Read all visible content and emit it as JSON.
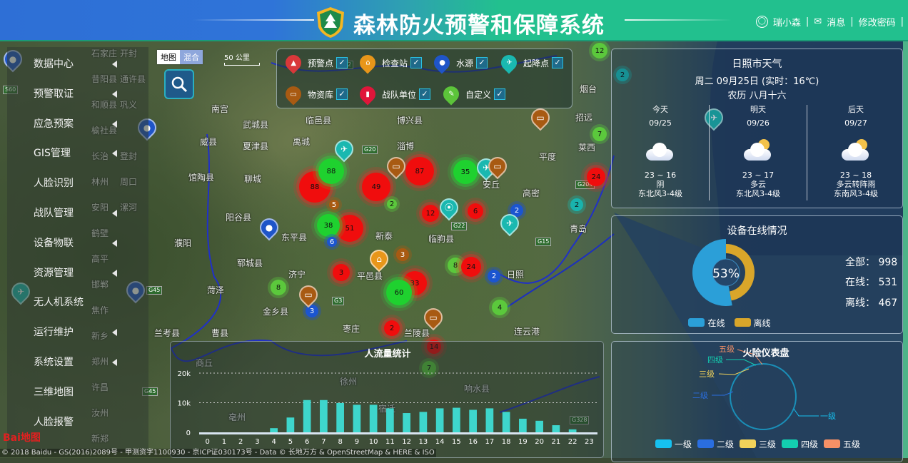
{
  "header": {
    "title": "森林防火预警和保障系统",
    "user": "瑞小森",
    "messages": "消息",
    "change_password": "修改密码",
    "colors": {
      "left": "#2e6fd6",
      "right": "#22c08e"
    }
  },
  "menu": {
    "items": [
      {
        "label": "数据中心",
        "submenu": true
      },
      {
        "label": "预警取证",
        "submenu": true
      },
      {
        "label": "应急预案",
        "submenu": true
      },
      {
        "label": "GIS管理",
        "submenu": true
      },
      {
        "label": "人脸识别",
        "submenu": false
      },
      {
        "label": "战队管理",
        "submenu": true
      },
      {
        "label": "设备物联",
        "submenu": true
      },
      {
        "label": "资源管理",
        "submenu": true
      },
      {
        "label": "无人机系统",
        "submenu": false
      },
      {
        "label": "运行维护",
        "submenu": true
      },
      {
        "label": "系统设置",
        "submenu": true
      },
      {
        "label": "三维地图",
        "submenu": false
      },
      {
        "label": "人脸报警",
        "submenu": false
      }
    ]
  },
  "map": {
    "type_options": [
      "地图",
      "混合"
    ],
    "selected_type": "混合",
    "scale": "50 公里",
    "copyright": "© 2018 Baidu - GS(2016)2089号 - 甲测资字1100930 - 京ICP证030173号 - Data © 长地万方 & OpenStreetMap & HERE & ISO",
    "logo": "Bai地图",
    "cities": [
      "石家庄",
      "昔阳县",
      "和顺县",
      "榆社县",
      "南宫",
      "武城县",
      "临邑县",
      "博兴县",
      "威县",
      "夏津县",
      "禹城",
      "淄博",
      "平度",
      "莱西",
      "招远",
      "烟台",
      "馆陶县",
      "聊城",
      "临朐县",
      "安丘",
      "高密",
      "阳谷县",
      "东平县",
      "新泰",
      "青岛",
      "濮阳",
      "郓城县",
      "济宁",
      "平邑县",
      "日照",
      "菏泽",
      "金乡县",
      "枣庄",
      "兰陵县",
      "兰考县",
      "曹县",
      "连云港",
      "徐州",
      "响水县",
      "亳州",
      "宿迁",
      "商丘",
      "周口",
      "漯河",
      "开封",
      "新乡",
      "焦作",
      "长治",
      "林州",
      "安阳",
      "鹤壁",
      "高平",
      "邯郸",
      "郑州",
      "许昌",
      "汝州",
      "新郑",
      "通许县",
      "巩义",
      "登封"
    ],
    "roads": [
      "G20",
      "G22",
      "G3",
      "G45",
      "G45",
      "S12",
      "G15",
      "G204",
      "S60",
      "G328"
    ],
    "clusters": [
      {
        "n": "88",
        "c": "red"
      },
      {
        "n": "88",
        "c": "green"
      },
      {
        "n": "49",
        "c": "red"
      },
      {
        "n": "87",
        "c": "red"
      },
      {
        "n": "35",
        "c": "green"
      },
      {
        "n": "12",
        "c": "red"
      },
      {
        "n": "6",
        "c": "red"
      },
      {
        "n": "2",
        "c": "blue"
      },
      {
        "n": "51",
        "c": "red"
      },
      {
        "n": "38",
        "c": "green"
      },
      {
        "n": "6",
        "c": "blue"
      },
      {
        "n": "5",
        "c": "brown"
      },
      {
        "n": "2",
        "c": "lgreen"
      },
      {
        "n": "3",
        "c": "brown"
      },
      {
        "n": "8",
        "c": "lgreen"
      },
      {
        "n": "24",
        "c": "red"
      },
      {
        "n": "3",
        "c": "red"
      },
      {
        "n": "33",
        "c": "red"
      },
      {
        "n": "60",
        "c": "green"
      },
      {
        "n": "2",
        "c": "blue"
      },
      {
        "n": "4",
        "c": "lgreen"
      },
      {
        "n": "2",
        "c": "red"
      },
      {
        "n": "3",
        "c": "blue"
      },
      {
        "n": "8",
        "c": "lgreen"
      },
      {
        "n": "12",
        "c": "lgreen"
      },
      {
        "n": "7",
        "c": "lgreen"
      },
      {
        "n": "2",
        "c": "teal"
      },
      {
        "n": "2",
        "c": "teal"
      },
      {
        "n": "24",
        "c": "red"
      },
      {
        "n": "7",
        "c": "lgreen"
      },
      {
        "n": "14",
        "c": "red"
      }
    ]
  },
  "layers": [
    {
      "label": "预警点",
      "icon": "alarm-light-icon",
      "color": "#d9383a",
      "checked": true
    },
    {
      "label": "检查站",
      "icon": "house-icon",
      "color": "#e8961a",
      "checked": true
    },
    {
      "label": "水源",
      "icon": "water-drop-icon",
      "color": "#1f55c8",
      "checked": true
    },
    {
      "label": "起降点",
      "icon": "airplane-icon",
      "color": "#1ab8b0",
      "checked": true
    },
    {
      "label": "物资库",
      "icon": "box-icon",
      "color": "#a85a12",
      "checked": true
    },
    {
      "label": "战队单位",
      "icon": "fire-extinguisher-icon",
      "color": "#e0163a",
      "checked": true
    },
    {
      "label": "自定义",
      "icon": "pencil-icon",
      "color": "#5cc43a",
      "checked": true
    }
  ],
  "weather": {
    "title": "日照市天气",
    "date_line": "周二 09月25日 (实时：16℃)",
    "lunar": "农历 八月十六",
    "days": [
      {
        "name": "今天",
        "date": "09/25",
        "temp": "23 ~ 16",
        "desc": "阴",
        "wind": "东北风3-4级",
        "icon": "cloud-icon"
      },
      {
        "name": "明天",
        "date": "09/26",
        "temp": "23 ~ 17",
        "desc": "多云",
        "wind": "东北风3-4级",
        "icon": "partly-cloudy-icon"
      },
      {
        "name": "后天",
        "date": "09/27",
        "temp": "23 ~ 18",
        "desc": "多云转阵雨",
        "wind": "东南风3-4级",
        "icon": "partly-cloudy-icon"
      }
    ]
  },
  "devices": {
    "title": "设备在线情况",
    "percent": "53%",
    "online_ratio": 0.53,
    "legend_online": "在线",
    "legend_offline": "离线",
    "colors": {
      "online": "#2b9fd8",
      "offline": "#d9a62a"
    },
    "total_label": "全部：",
    "total": "998",
    "online_label": "在线：",
    "online": "531",
    "offline_label": "离线：",
    "offline": "467"
  },
  "fire_gauge": {
    "title": "火险仪表盘",
    "levels": [
      {
        "label": "一级",
        "color": "#16c1f0"
      },
      {
        "label": "二级",
        "color": "#2a6ee0"
      },
      {
        "label": "三级",
        "color": "#f2d35a"
      },
      {
        "label": "四级",
        "color": "#13cfb0"
      },
      {
        "label": "五级",
        "color": "#f59066"
      }
    ]
  },
  "chart_data": {
    "type": "bar",
    "title": "人流量统计",
    "xlabel": "",
    "ylabel": "",
    "ylim": [
      0,
      20000
    ],
    "yticks": [
      "0",
      "10k",
      "20k"
    ],
    "grid": true,
    "categories": [
      "0",
      "1",
      "2",
      "3",
      "4",
      "5",
      "6",
      "7",
      "8",
      "9",
      "10",
      "11",
      "12",
      "13",
      "14",
      "15",
      "16",
      "17",
      "18",
      "19",
      "20",
      "21",
      "22",
      "23"
    ],
    "values": [
      0,
      0,
      0,
      0,
      1400,
      5000,
      10900,
      10900,
      9900,
      9300,
      9300,
      8100,
      6500,
      6900,
      8100,
      8300,
      7600,
      8100,
      6900,
      4600,
      3900,
      2400,
      1000,
      0
    ],
    "bar_color": "#3ed6cc"
  }
}
